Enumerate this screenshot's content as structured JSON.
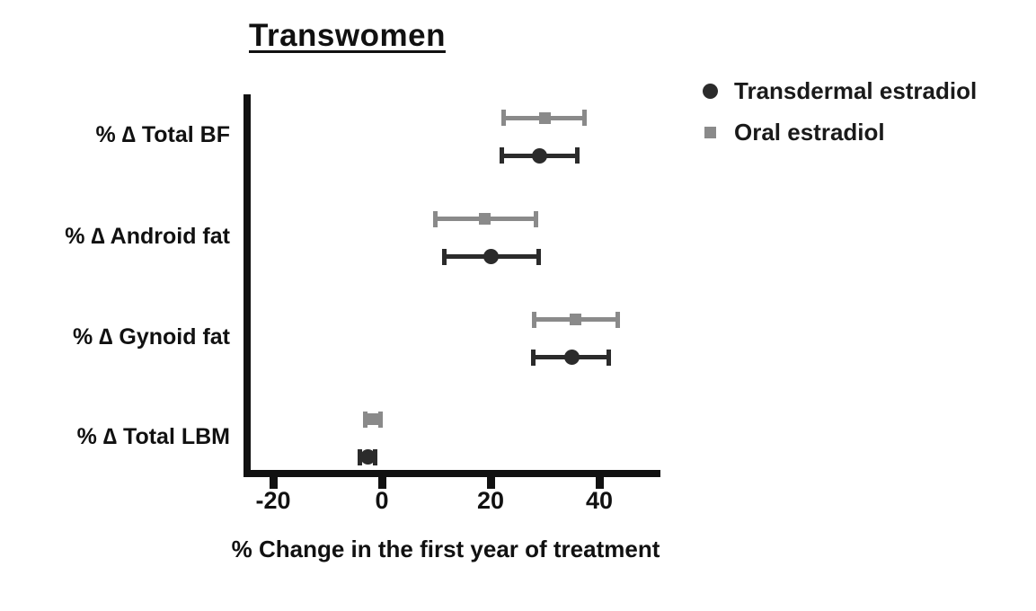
{
  "chart_data": {
    "type": "scatter",
    "subtype": "horizontal-dot-with-error-bars",
    "title": "Transwomen",
    "xlabel": "% Change in the first year of treatment",
    "xticks": [
      -20,
      0,
      20,
      40
    ],
    "xlim": [
      -25,
      51
    ],
    "grid": false,
    "legend_position": "top-right",
    "axis_color": "#111111",
    "categories": [
      "% ∆ Total BF",
      "% ∆ Android fat",
      "% ∆ Gynoid fat",
      "% ∆ Total LBM"
    ],
    "series": [
      {
        "name": "Transdermal estradiol",
        "marker": "circle",
        "color": "#2b2b2b",
        "values": [
          29,
          20,
          35,
          -2.6
        ],
        "ci_low": [
          22,
          11.5,
          27.8,
          -4.0
        ],
        "ci_high": [
          36,
          28.8,
          41.8,
          -1.2
        ]
      },
      {
        "name": "Oral estradiol",
        "marker": "square",
        "color": "#8a8a8a",
        "values": [
          30,
          19,
          35.7,
          -1.6
        ],
        "ci_low": [
          22.4,
          9.8,
          28.0,
          -3.1
        ],
        "ci_high": [
          37.3,
          28.3,
          43.4,
          -0.2
        ]
      }
    ]
  }
}
